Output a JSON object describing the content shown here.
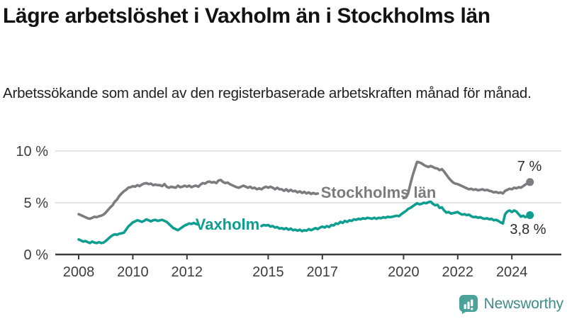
{
  "header": {
    "title": "Lägre arbetslöshet i Vaxholm än i Stockholms län",
    "subtitle": "Arbetssökande som andel av den registerbaserade arbetskraften månad för månad."
  },
  "branding": {
    "wordmark": "Newsworthy",
    "icon": "newsworthy-chart-bubble-icon",
    "icon_color": "#4BA29B",
    "text_color": "#3F8B85"
  },
  "chart_data": {
    "type": "line",
    "unit": "%",
    "x_start_year": 2008,
    "points_per_year": 12,
    "x_end_label_period": "sep 2024",
    "ylim": [
      0,
      10
    ],
    "grid": "horizontal",
    "legend_position": "inline-on-line",
    "y_ticks": [
      {
        "value": 0,
        "label": "0 %"
      },
      {
        "value": 5,
        "label": "5 %"
      },
      {
        "value": 10,
        "label": "10 %"
      }
    ],
    "x_ticks": [
      {
        "value": 2008,
        "label": "2008"
      },
      {
        "value": 2010,
        "label": "2010"
      },
      {
        "value": 2012,
        "label": "2012"
      },
      {
        "value": 2015,
        "label": "2015"
      },
      {
        "value": 2017,
        "label": "2017"
      },
      {
        "value": 2020,
        "label": "2020"
      },
      {
        "value": 2022,
        "label": "2022"
      },
      {
        "value": 2024,
        "label": "2024"
      }
    ],
    "series": [
      {
        "name": "Stockholms län",
        "color": "#7b7b80",
        "end_label": "7 %",
        "values": [
          3.9,
          3.8,
          3.7,
          3.6,
          3.5,
          3.45,
          3.55,
          3.65,
          3.6,
          3.7,
          3.75,
          3.85,
          4.05,
          4.3,
          4.55,
          4.75,
          5.1,
          5.3,
          5.65,
          5.9,
          6.1,
          6.25,
          6.45,
          6.5,
          6.6,
          6.55,
          6.7,
          6.6,
          6.75,
          6.85,
          6.9,
          6.8,
          6.85,
          6.7,
          6.75,
          6.7,
          6.7,
          6.6,
          6.8,
          6.55,
          6.45,
          6.55,
          6.5,
          6.45,
          6.65,
          6.5,
          6.55,
          6.65,
          6.55,
          6.65,
          6.5,
          6.6,
          6.65,
          6.55,
          6.75,
          6.9,
          6.85,
          7.0,
          7.05,
          6.95,
          7.0,
          6.9,
          7.15,
          7.2,
          7.0,
          6.9,
          6.95,
          6.8,
          6.7,
          6.6,
          6.5,
          6.45,
          6.55,
          6.65,
          6.55,
          6.45,
          6.55,
          6.4,
          6.45,
          6.3,
          6.4,
          6.3,
          6.45,
          6.55,
          6.45,
          6.55,
          6.45,
          6.3,
          6.45,
          6.3,
          6.3,
          6.15,
          6.3,
          6.1,
          6.25,
          6.1,
          6.15,
          6.0,
          6.1,
          5.95,
          6.05,
          5.9,
          6.0,
          5.85,
          5.95,
          5.85,
          5.9,
          5.8,
          5.85,
          5.75,
          5.85,
          5.7,
          5.8,
          5.65,
          5.75,
          5.6,
          5.7,
          5.6,
          5.65,
          5.55,
          5.6,
          5.5,
          5.6,
          5.45,
          5.55,
          5.4,
          5.5,
          5.4,
          5.45,
          5.35,
          5.45,
          5.4,
          5.45,
          5.35,
          5.45,
          5.35,
          5.4,
          5.3,
          5.4,
          5.35,
          5.45,
          5.4,
          5.45,
          5.4,
          5.45,
          5.5,
          5.9,
          6.8,
          7.6,
          8.3,
          8.95,
          8.9,
          8.8,
          8.65,
          8.55,
          8.45,
          8.55,
          8.45,
          8.35,
          8.3,
          8.15,
          8.25,
          8.0,
          7.7,
          7.4,
          7.15,
          6.95,
          6.85,
          6.8,
          6.7,
          6.6,
          6.5,
          6.4,
          6.3,
          6.35,
          6.25,
          6.3,
          6.2,
          6.25,
          6.3,
          6.2,
          6.25,
          6.15,
          6.1,
          6.0,
          6.05,
          5.95,
          6.0,
          5.9,
          6.15,
          6.25,
          6.35,
          6.3,
          6.45,
          6.4,
          6.5,
          6.45,
          6.6,
          6.75,
          6.9,
          7.0
        ]
      },
      {
        "name": "Vaxholm",
        "color": "#0d9e91",
        "end_label": "3,8 %",
        "values": [
          1.45,
          1.35,
          1.25,
          1.3,
          1.2,
          1.1,
          1.25,
          1.15,
          1.1,
          1.2,
          1.1,
          1.15,
          1.3,
          1.5,
          1.7,
          1.85,
          1.95,
          1.9,
          2.0,
          2.05,
          2.1,
          2.4,
          2.7,
          2.9,
          3.1,
          3.2,
          3.3,
          3.25,
          3.15,
          3.25,
          3.4,
          3.3,
          3.2,
          3.3,
          3.35,
          3.25,
          3.3,
          3.35,
          3.25,
          3.15,
          2.95,
          2.75,
          2.55,
          2.45,
          2.35,
          2.5,
          2.65,
          2.8,
          2.9,
          3.0,
          2.95,
          3.05,
          2.95,
          2.9,
          3.0,
          3.1,
          3.0,
          2.95,
          3.05,
          3.0,
          3.05,
          3.1,
          3.0,
          2.95,
          3.05,
          2.95,
          3.1,
          3.15,
          3.05,
          2.95,
          3.0,
          2.9,
          2.95,
          3.05,
          2.95,
          2.85,
          2.95,
          2.85,
          2.9,
          2.8,
          2.85,
          2.75,
          2.85,
          2.8,
          2.85,
          2.7,
          2.75,
          2.6,
          2.65,
          2.5,
          2.55,
          2.45,
          2.55,
          2.4,
          2.5,
          2.35,
          2.4,
          2.3,
          2.4,
          2.25,
          2.35,
          2.3,
          2.45,
          2.35,
          2.45,
          2.55,
          2.45,
          2.6,
          2.7,
          2.6,
          2.75,
          2.65,
          2.85,
          2.8,
          3.0,
          2.95,
          3.15,
          3.05,
          3.25,
          3.15,
          3.3,
          3.25,
          3.4,
          3.35,
          3.45,
          3.4,
          3.5,
          3.45,
          3.55,
          3.5,
          3.45,
          3.55,
          3.45,
          3.55,
          3.5,
          3.6,
          3.55,
          3.65,
          3.6,
          3.65,
          3.7,
          3.75,
          3.7,
          3.9,
          4.05,
          4.2,
          4.4,
          4.5,
          4.65,
          4.8,
          4.95,
          4.85,
          4.9,
          5.0,
          4.95,
          5.05,
          5.1,
          4.9,
          4.75,
          4.8,
          4.5,
          4.55,
          4.25,
          4.05,
          4.1,
          3.95,
          4.0,
          4.05,
          4.1,
          3.95,
          3.85,
          3.9,
          3.8,
          3.85,
          3.7,
          3.6,
          3.65,
          3.55,
          3.6,
          3.5,
          3.45,
          3.5,
          3.4,
          3.45,
          3.3,
          3.35,
          3.25,
          3.1,
          3.0,
          3.9,
          4.15,
          4.25,
          4.1,
          4.25,
          4.15,
          3.9,
          3.65,
          3.75,
          3.6,
          3.7,
          3.8
        ]
      }
    ]
  }
}
